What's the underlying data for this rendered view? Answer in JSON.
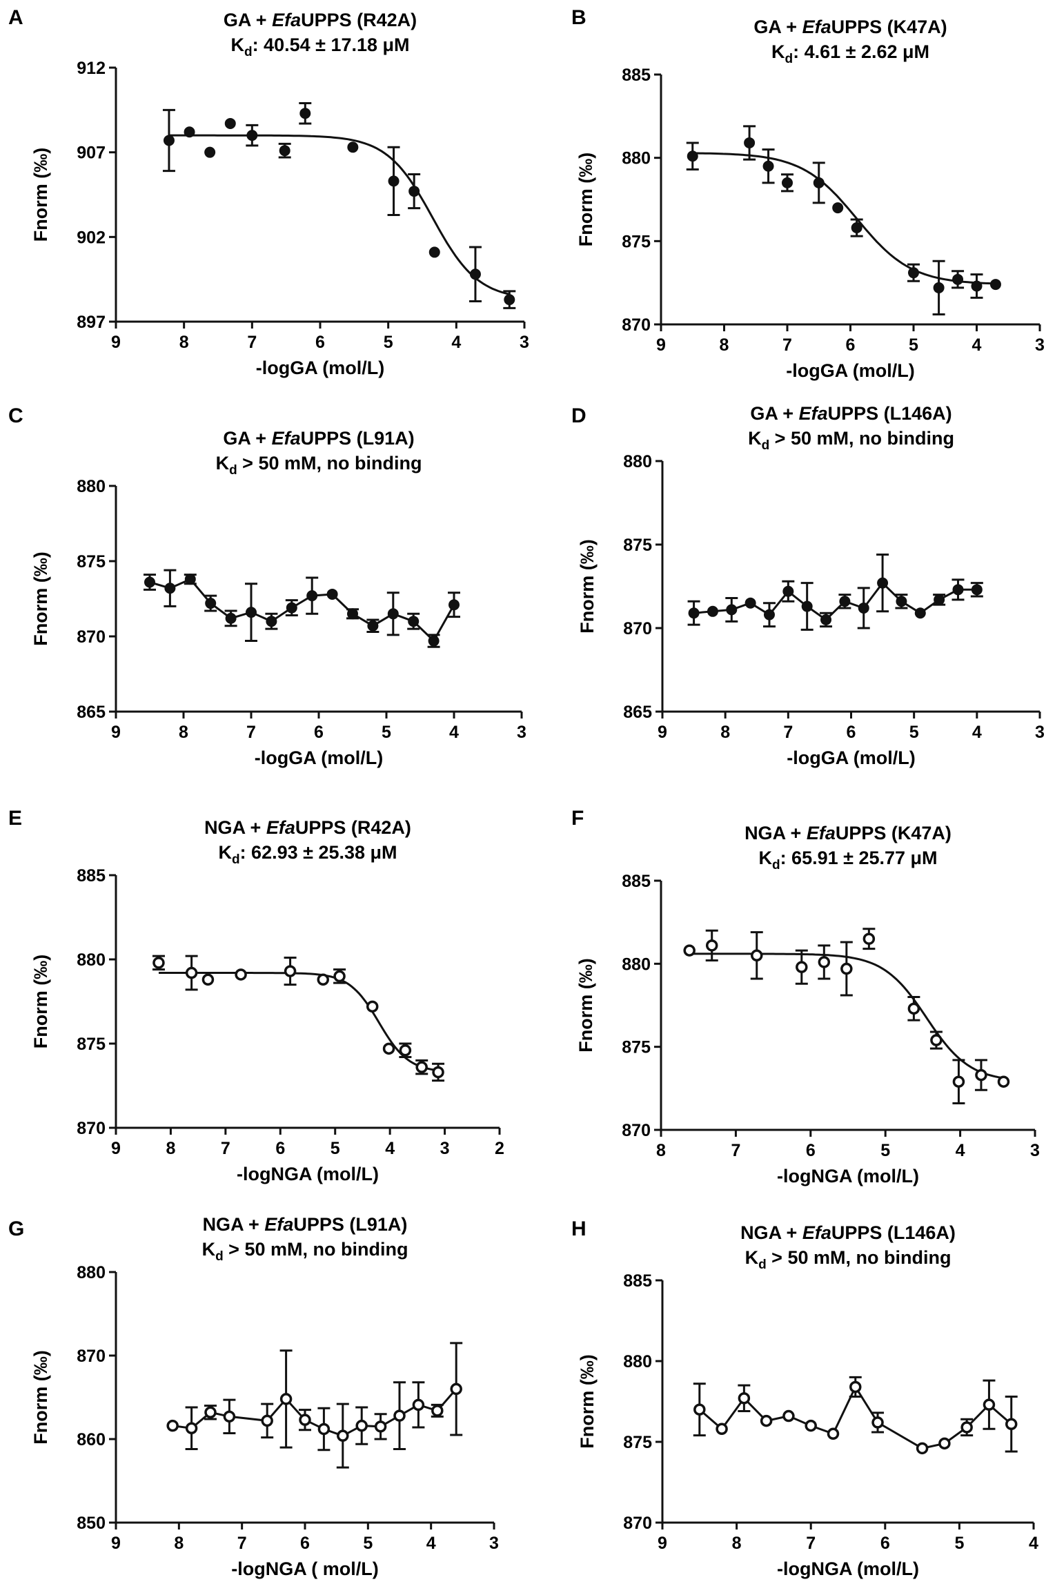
{
  "chart_data": [
    {
      "panel": "A",
      "type": "scatter",
      "marker": "filled",
      "title": {
        "pre": "GA + ",
        "italic": "Efa",
        "post": "UPPS (R42A)"
      },
      "subtitle": {
        "k": "K",
        "sub": "d",
        "rest": ": 40.54 ± 17.18 μM"
      },
      "xlabel": "-logGA (mol/L)",
      "ylabel": "Fnorm (‰)",
      "xlim": [
        9,
        3
      ],
      "ylim": [
        897,
        912
      ],
      "xticks": [
        9,
        8,
        7,
        6,
        5,
        4,
        3
      ],
      "yticks": [
        897,
        902,
        907,
        912
      ],
      "points": [
        {
          "x": 8.22,
          "y": 907.7,
          "err": 1.8
        },
        {
          "x": 7.92,
          "y": 908.2,
          "err": 0
        },
        {
          "x": 7.62,
          "y": 907.0,
          "err": 0
        },
        {
          "x": 7.32,
          "y": 908.7,
          "err": 0
        },
        {
          "x": 7.0,
          "y": 908.0,
          "err": 0.6
        },
        {
          "x": 6.52,
          "y": 907.1,
          "err": 0.4
        },
        {
          "x": 6.22,
          "y": 909.3,
          "err": 0.6
        },
        {
          "x": 5.52,
          "y": 907.3,
          "err": 0
        },
        {
          "x": 4.92,
          "y": 905.3,
          "err": 2.0
        },
        {
          "x": 4.62,
          "y": 904.7,
          "err": 1.0
        },
        {
          "x": 4.32,
          "y": 901.1,
          "err": 0
        },
        {
          "x": 3.72,
          "y": 899.8,
          "err": 1.6
        },
        {
          "x": 3.22,
          "y": 898.3,
          "err": 0.5
        }
      ],
      "fit": {
        "model": "sigmoid",
        "top": 908.0,
        "bottom": 898.3,
        "mid": 4.35,
        "hill": 1.3,
        "from": 8.22,
        "to": 3.22
      }
    },
    {
      "panel": "B",
      "type": "scatter",
      "marker": "filled",
      "title": {
        "pre": "GA + ",
        "italic": "Efa",
        "post": "UPPS (K47A)"
      },
      "subtitle": {
        "k": "K",
        "sub": "d",
        "rest": ": 4.61 ± 2.62 μM"
      },
      "xlabel": "-logGA (mol/L)",
      "ylabel": "Fnorm (‰)",
      "xlim": [
        9,
        3
      ],
      "ylim": [
        870,
        885
      ],
      "xticks": [
        9,
        8,
        7,
        6,
        5,
        4,
        3
      ],
      "yticks": [
        870,
        875,
        880,
        885
      ],
      "points": [
        {
          "x": 8.5,
          "y": 880.1,
          "err": 0.8
        },
        {
          "x": 7.6,
          "y": 880.9,
          "err": 1.0
        },
        {
          "x": 7.3,
          "y": 879.5,
          "err": 1.0
        },
        {
          "x": 7.0,
          "y": 878.5,
          "err": 0.5
        },
        {
          "x": 6.5,
          "y": 878.5,
          "err": 1.2
        },
        {
          "x": 6.2,
          "y": 877.0,
          "err": 0
        },
        {
          "x": 5.9,
          "y": 875.8,
          "err": 0.5
        },
        {
          "x": 5.0,
          "y": 873.1,
          "err": 0.5
        },
        {
          "x": 4.6,
          "y": 872.2,
          "err": 1.6
        },
        {
          "x": 4.3,
          "y": 872.7,
          "err": 0.5
        },
        {
          "x": 4.0,
          "y": 872.3,
          "err": 0.7
        },
        {
          "x": 3.7,
          "y": 872.4,
          "err": 0
        }
      ],
      "fit": {
        "model": "sigmoid",
        "top": 880.3,
        "bottom": 872.4,
        "mid": 5.9,
        "hill": 1.0,
        "from": 8.5,
        "to": 3.7
      }
    },
    {
      "panel": "C",
      "type": "line",
      "marker": "filled",
      "title": {
        "pre": "GA + ",
        "italic": "Efa",
        "post": "UPPS (L91A)"
      },
      "subtitle": {
        "k": "K",
        "sub": "d",
        "rest": " > 50 mM, no binding"
      },
      "xlabel": "-logGA (mol/L)",
      "ylabel": "Fnorm (‰)",
      "xlim": [
        9,
        3
      ],
      "ylim": [
        865,
        880
      ],
      "xticks": [
        9,
        8,
        7,
        6,
        5,
        4,
        3
      ],
      "yticks": [
        865,
        870,
        875,
        880
      ],
      "points": [
        {
          "x": 8.5,
          "y": 873.6,
          "err": 0.5
        },
        {
          "x": 8.2,
          "y": 873.2,
          "err": 1.2
        },
        {
          "x": 7.9,
          "y": 873.8,
          "err": 0.3
        },
        {
          "x": 7.6,
          "y": 872.2,
          "err": 0.5
        },
        {
          "x": 7.3,
          "y": 871.2,
          "err": 0.5
        },
        {
          "x": 7.0,
          "y": 871.6,
          "err": 1.9
        },
        {
          "x": 6.7,
          "y": 871.0,
          "err": 0.5
        },
        {
          "x": 6.4,
          "y": 871.9,
          "err": 0.5
        },
        {
          "x": 6.1,
          "y": 872.7,
          "err": 1.2
        },
        {
          "x": 5.8,
          "y": 872.8,
          "err": 0
        },
        {
          "x": 5.5,
          "y": 871.5,
          "err": 0.3
        },
        {
          "x": 5.2,
          "y": 870.7,
          "err": 0.4
        },
        {
          "x": 4.9,
          "y": 871.5,
          "err": 1.4
        },
        {
          "x": 4.6,
          "y": 871.0,
          "err": 0.5
        },
        {
          "x": 4.3,
          "y": 869.7,
          "err": 0.4
        },
        {
          "x": 4.0,
          "y": 872.1,
          "err": 0.8
        }
      ]
    },
    {
      "panel": "D",
      "type": "line",
      "marker": "filled",
      "title": {
        "pre": "GA + ",
        "italic": "Efa",
        "post": "UPPS (L146A)"
      },
      "subtitle": {
        "k": "K",
        "sub": "d",
        "rest": " > 50 mM, no binding"
      },
      "xlabel": "-logGA (mol/L)",
      "ylabel": "Fnorm (‰)",
      "xlim": [
        9,
        3
      ],
      "ylim": [
        865,
        880
      ],
      "xticks": [
        9,
        8,
        7,
        6,
        5,
        4,
        3
      ],
      "yticks": [
        865,
        870,
        875,
        880
      ],
      "points": [
        {
          "x": 8.5,
          "y": 870.9,
          "err": 0.7
        },
        {
          "x": 8.2,
          "y": 871.0,
          "err": 0
        },
        {
          "x": 7.9,
          "y": 871.1,
          "err": 0.7
        },
        {
          "x": 7.6,
          "y": 871.5,
          "err": 0
        },
        {
          "x": 7.3,
          "y": 870.8,
          "err": 0.7
        },
        {
          "x": 7.0,
          "y": 872.2,
          "err": 0.6
        },
        {
          "x": 6.7,
          "y": 871.3,
          "err": 1.4
        },
        {
          "x": 6.4,
          "y": 870.5,
          "err": 0.4
        },
        {
          "x": 6.1,
          "y": 871.6,
          "err": 0.4
        },
        {
          "x": 5.8,
          "y": 871.2,
          "err": 1.2
        },
        {
          "x": 5.5,
          "y": 872.7,
          "err": 1.7
        },
        {
          "x": 5.2,
          "y": 871.6,
          "err": 0.4
        },
        {
          "x": 4.9,
          "y": 870.9,
          "err": 0
        },
        {
          "x": 4.6,
          "y": 871.7,
          "err": 0.3
        },
        {
          "x": 4.3,
          "y": 872.3,
          "err": 0.6
        },
        {
          "x": 4.0,
          "y": 872.3,
          "err": 0.4
        }
      ]
    },
    {
      "panel": "E",
      "type": "scatter",
      "marker": "open",
      "title": {
        "pre": "NGA + ",
        "italic": "Efa",
        "post": "UPPS (R42A)"
      },
      "subtitle": {
        "k": "K",
        "sub": "d",
        "rest": ": 62.93 ± 25.38 μM"
      },
      "xlabel": "-logNGA (mol/L)",
      "ylabel": "Fnorm (‰)",
      "xlim": [
        9,
        2
      ],
      "ylim": [
        870,
        885
      ],
      "xticks": [
        9,
        8,
        7,
        6,
        5,
        4,
        3,
        2
      ],
      "yticks": [
        870,
        875,
        880,
        885
      ],
      "points": [
        {
          "x": 8.22,
          "y": 879.8,
          "err": 0.4
        },
        {
          "x": 7.62,
          "y": 879.2,
          "err": 1.0
        },
        {
          "x": 7.32,
          "y": 878.8,
          "err": 0
        },
        {
          "x": 6.72,
          "y": 879.1,
          "err": 0
        },
        {
          "x": 5.82,
          "y": 879.3,
          "err": 0.8
        },
        {
          "x": 5.22,
          "y": 878.8,
          "err": 0
        },
        {
          "x": 4.92,
          "y": 879.0,
          "err": 0.4
        },
        {
          "x": 4.32,
          "y": 877.2,
          "err": 0
        },
        {
          "x": 4.02,
          "y": 874.7,
          "err": 0
        },
        {
          "x": 3.72,
          "y": 874.6,
          "err": 0.4
        },
        {
          "x": 3.42,
          "y": 873.6,
          "err": 0.4
        },
        {
          "x": 3.12,
          "y": 873.3,
          "err": 0.5
        }
      ],
      "fit": {
        "model": "sigmoid",
        "top": 879.2,
        "bottom": 873.3,
        "mid": 4.2,
        "hill": 1.6,
        "from": 8.22,
        "to": 3.12
      }
    },
    {
      "panel": "F",
      "type": "scatter",
      "marker": "open",
      "title": {
        "pre": "NGA + ",
        "italic": "Efa",
        "post": "UPPS (K47A)"
      },
      "subtitle": {
        "k": "K",
        "sub": "d",
        "rest": ": 65.91 ± 25.77 μM"
      },
      "xlabel": "-logNGA (mol/L)",
      "ylabel": "Fnorm (‰)",
      "xlim": [
        8,
        3
      ],
      "ylim": [
        870,
        885
      ],
      "xticks": [
        8,
        7,
        6,
        5,
        4,
        3
      ],
      "yticks": [
        870,
        875,
        880,
        885
      ],
      "points": [
        {
          "x": 7.62,
          "y": 880.8,
          "err": 0
        },
        {
          "x": 7.32,
          "y": 881.1,
          "err": 0.9
        },
        {
          "x": 6.72,
          "y": 880.5,
          "err": 1.4
        },
        {
          "x": 6.12,
          "y": 879.8,
          "err": 1.0
        },
        {
          "x": 5.82,
          "y": 880.1,
          "err": 1.0
        },
        {
          "x": 5.52,
          "y": 879.7,
          "err": 1.6
        },
        {
          "x": 5.22,
          "y": 881.5,
          "err": 0.6
        },
        {
          "x": 4.62,
          "y": 877.3,
          "err": 0.7
        },
        {
          "x": 4.32,
          "y": 875.4,
          "err": 0.5
        },
        {
          "x": 4.02,
          "y": 872.9,
          "err": 1.3
        },
        {
          "x": 3.72,
          "y": 873.3,
          "err": 0.9
        },
        {
          "x": 3.42,
          "y": 872.9,
          "err": 0
        }
      ],
      "fit": {
        "model": "sigmoid",
        "top": 880.6,
        "bottom": 872.9,
        "mid": 4.45,
        "hill": 1.5,
        "from": 7.62,
        "to": 3.42
      }
    },
    {
      "panel": "G",
      "type": "line",
      "marker": "open",
      "title": {
        "pre": "NGA + ",
        "italic": "Efa",
        "post": "UPPS (L91A)"
      },
      "subtitle": {
        "k": "K",
        "sub": "d",
        "rest": " > 50 mM, no binding"
      },
      "xlabel": "-logNGA ( mol/L)",
      "ylabel": "Fnorm (‰)",
      "xlim": [
        9,
        3
      ],
      "ylim": [
        850,
        880
      ],
      "xticks": [
        9,
        8,
        7,
        6,
        5,
        4,
        3
      ],
      "yticks": [
        850,
        860,
        870,
        880
      ],
      "points": [
        {
          "x": 8.1,
          "y": 861.6,
          "err": 0
        },
        {
          "x": 7.8,
          "y": 861.3,
          "err": 2.5
        },
        {
          "x": 7.5,
          "y": 863.2,
          "err": 0.8
        },
        {
          "x": 7.2,
          "y": 862.7,
          "err": 2.0
        },
        {
          "x": 6.6,
          "y": 862.2,
          "err": 2.0
        },
        {
          "x": 6.3,
          "y": 864.8,
          "err": 5.8
        },
        {
          "x": 6.0,
          "y": 862.3,
          "err": 1.2
        },
        {
          "x": 5.7,
          "y": 861.2,
          "err": 2.5
        },
        {
          "x": 5.4,
          "y": 860.4,
          "err": 3.8
        },
        {
          "x": 5.1,
          "y": 861.6,
          "err": 2.2
        },
        {
          "x": 4.8,
          "y": 861.5,
          "err": 1.5
        },
        {
          "x": 4.5,
          "y": 862.8,
          "err": 4.0
        },
        {
          "x": 4.2,
          "y": 864.1,
          "err": 2.7
        },
        {
          "x": 3.9,
          "y": 863.4,
          "err": 0.7
        },
        {
          "x": 3.6,
          "y": 866.0,
          "err": 5.5
        }
      ]
    },
    {
      "panel": "H",
      "type": "line",
      "marker": "open",
      "title": {
        "pre": "NGA + ",
        "italic": "Efa",
        "post": "UPPS (L146A)"
      },
      "subtitle": {
        "k": "K",
        "sub": "d",
        "rest": " > 50 mM, no binding"
      },
      "xlabel": "-logNGA (mol/L)",
      "ylabel": "Fnorm (‰)",
      "xlim": [
        9,
        4
      ],
      "ylim": [
        870,
        885
      ],
      "xticks": [
        9,
        8,
        7,
        6,
        5,
        4
      ],
      "yticks": [
        870,
        875,
        880,
        885
      ],
      "points": [
        {
          "x": 8.5,
          "y": 877.0,
          "err": 1.6
        },
        {
          "x": 8.2,
          "y": 875.8,
          "err": 0
        },
        {
          "x": 7.9,
          "y": 877.7,
          "err": 0.8
        },
        {
          "x": 7.6,
          "y": 876.3,
          "err": 0
        },
        {
          "x": 7.3,
          "y": 876.6,
          "err": 0
        },
        {
          "x": 7.0,
          "y": 876.0,
          "err": 0
        },
        {
          "x": 6.7,
          "y": 875.5,
          "err": 0
        },
        {
          "x": 6.4,
          "y": 878.4,
          "err": 0.6
        },
        {
          "x": 6.1,
          "y": 876.2,
          "err": 0.6
        },
        {
          "x": 5.5,
          "y": 874.6,
          "err": 0
        },
        {
          "x": 5.2,
          "y": 874.9,
          "err": 0
        },
        {
          "x": 4.9,
          "y": 875.9,
          "err": 0.5
        },
        {
          "x": 4.6,
          "y": 877.3,
          "err": 1.5
        },
        {
          "x": 4.3,
          "y": 876.1,
          "err": 1.7
        }
      ]
    }
  ]
}
